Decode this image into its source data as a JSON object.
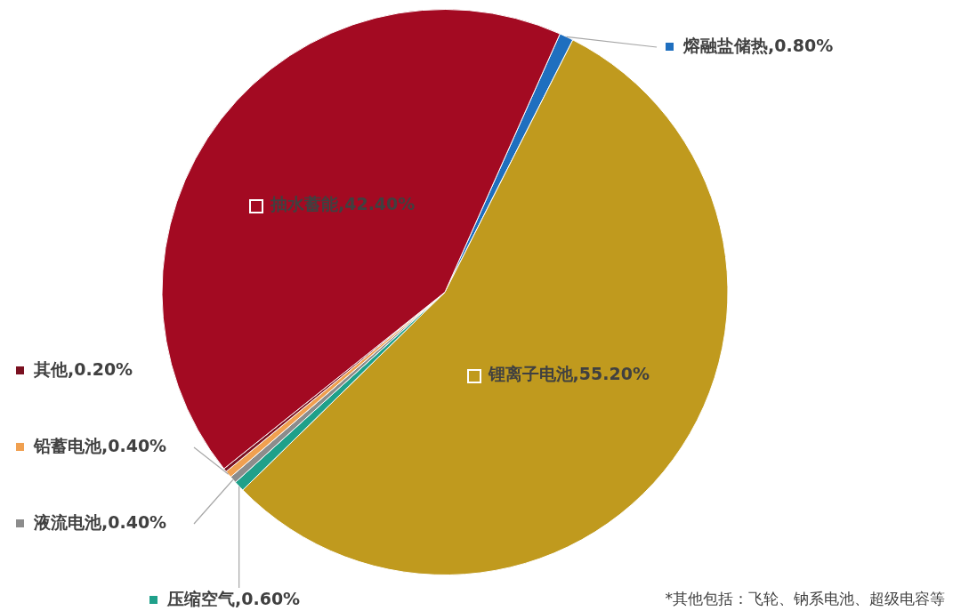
{
  "chart_data": {
    "type": "pie",
    "categories": [
      "熔融盐储热",
      "锂离子电池",
      "压缩空气",
      "液流电池",
      "铅蓄电池",
      "其他",
      "抽水蓄能"
    ],
    "values": [
      0.8,
      55.2,
      0.6,
      0.4,
      0.4,
      0.2,
      42.4
    ],
    "value_labels": [
      "0.80%",
      "55.20%",
      "0.60%",
      "0.40%",
      "0.40%",
      "0.20%",
      "42.40%"
    ],
    "colors": [
      "#1f6fbf",
      "#c09a1e",
      "#1fa08a",
      "#8c8c8c",
      "#f0a050",
      "#7a1020",
      "#a30a22"
    ],
    "annotations": [
      "*其他包括：飞轮、钠系电池、超级电容等"
    ],
    "legend": "left"
  }
}
